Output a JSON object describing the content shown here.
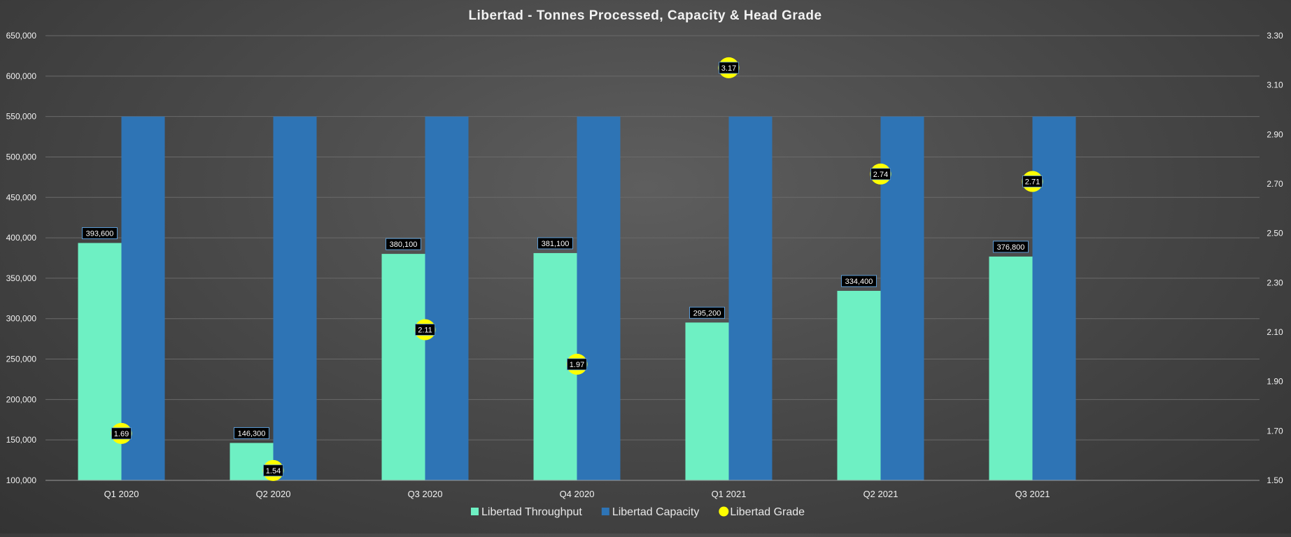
{
  "colors": {
    "throughput": "#6ef0c3",
    "capacity": "#2e74b5",
    "grade": "#ffff00",
    "label_bg": "#000000",
    "label_border": "#5b9bd5",
    "text": "#f2f2f2",
    "grid": "#6a6a6a"
  },
  "chart_data": {
    "type": "bar",
    "title": "Libertad - Tonnes Processed, Capacity & Head Grade",
    "categories": [
      "Q1 2020",
      "Q2 2020",
      "Q3 2020",
      "Q4 2020",
      "Q1 2021",
      "Q2 2021",
      "Q3 2021"
    ],
    "series": [
      {
        "name": "Libertad Throughput",
        "type": "bar",
        "axis": "left",
        "values": [
          393600,
          146300,
          380100,
          381100,
          295200,
          334400,
          376800
        ],
        "labels": [
          "393,600",
          "146,300",
          "380,100",
          "381,100",
          "295,200",
          "334,400",
          "376,800"
        ]
      },
      {
        "name": "Libertad Capacity",
        "type": "bar",
        "axis": "left",
        "values": [
          550000,
          550000,
          550000,
          550000,
          550000,
          550000,
          550000
        ]
      },
      {
        "name": "Libertad Grade",
        "type": "scatter",
        "axis": "right",
        "values": [
          1.69,
          1.54,
          2.11,
          1.97,
          3.17,
          2.74,
          2.71
        ],
        "labels": [
          "1.69",
          "1.54",
          "2.11",
          "1.97",
          "3.17",
          "2.74",
          "2.71"
        ]
      }
    ],
    "ylim": [
      100000,
      650000
    ],
    "y2lim": [
      1.5,
      3.3
    ],
    "yticks": [
      "100,000",
      "150,000",
      "200,000",
      "250,000",
      "300,000",
      "350,000",
      "400,000",
      "450,000",
      "500,000",
      "550,000",
      "600,000",
      "650,000"
    ],
    "y2ticks": [
      "1.50",
      "1.70",
      "1.90",
      "2.10",
      "2.30",
      "2.50",
      "2.70",
      "2.90",
      "3.10",
      "3.30"
    ],
    "grid": true,
    "legend_position": "bottom"
  }
}
